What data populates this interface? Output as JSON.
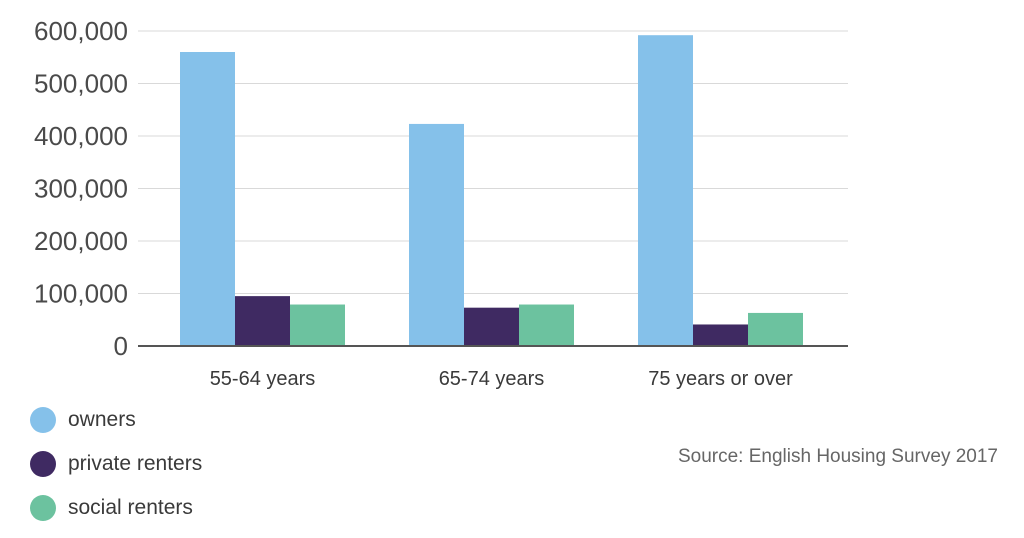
{
  "chart_data": {
    "type": "bar",
    "categories": [
      "55-64 years",
      "65-74 years",
      "75 years or over"
    ],
    "series": [
      {
        "name": "owners",
        "color": "#85c1ea",
        "values": [
          560000,
          423000,
          592000
        ]
      },
      {
        "name": "private renters",
        "color": "#3f2a62",
        "values": [
          95000,
          73000,
          41000
        ]
      },
      {
        "name": "social renters",
        "color": "#6cc29f",
        "values": [
          79000,
          79000,
          63000
        ]
      }
    ],
    "ylim": [
      0,
      600000
    ],
    "yticks": [
      "0",
      "100,000",
      "200,000",
      "300,000",
      "400,000",
      "500,000",
      "600,000"
    ],
    "grid": true,
    "legend_position": "bottom-left",
    "source": "Source: English Housing Survey 2017"
  }
}
